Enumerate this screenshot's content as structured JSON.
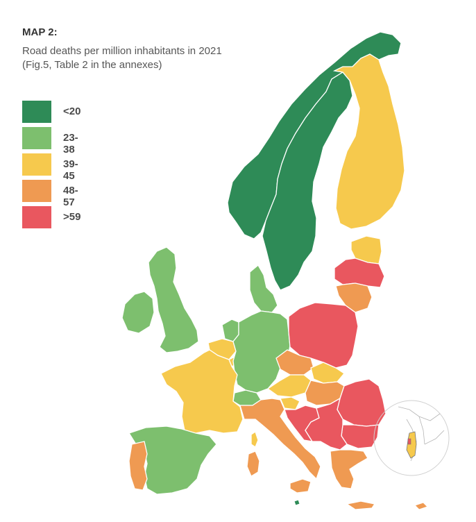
{
  "header": {
    "title": "MAP 2:",
    "subtitle": "Road deaths per million inhabitants in 2021 (Fig.5, Table 2 in the annexes)"
  },
  "legend": [
    {
      "label": "<20",
      "color": "#2e8b57"
    },
    {
      "label": "23-38",
      "color": "#7dbf6e"
    },
    {
      "label": "39-45",
      "color": "#f6c94d"
    },
    {
      "label": "48-57",
      "color": "#ef9a52"
    },
    {
      "label": ">59",
      "color": "#e9575f"
    }
  ],
  "colors": {
    "border": "#ffffff",
    "inset_circle": "#d0d0d0"
  }
}
